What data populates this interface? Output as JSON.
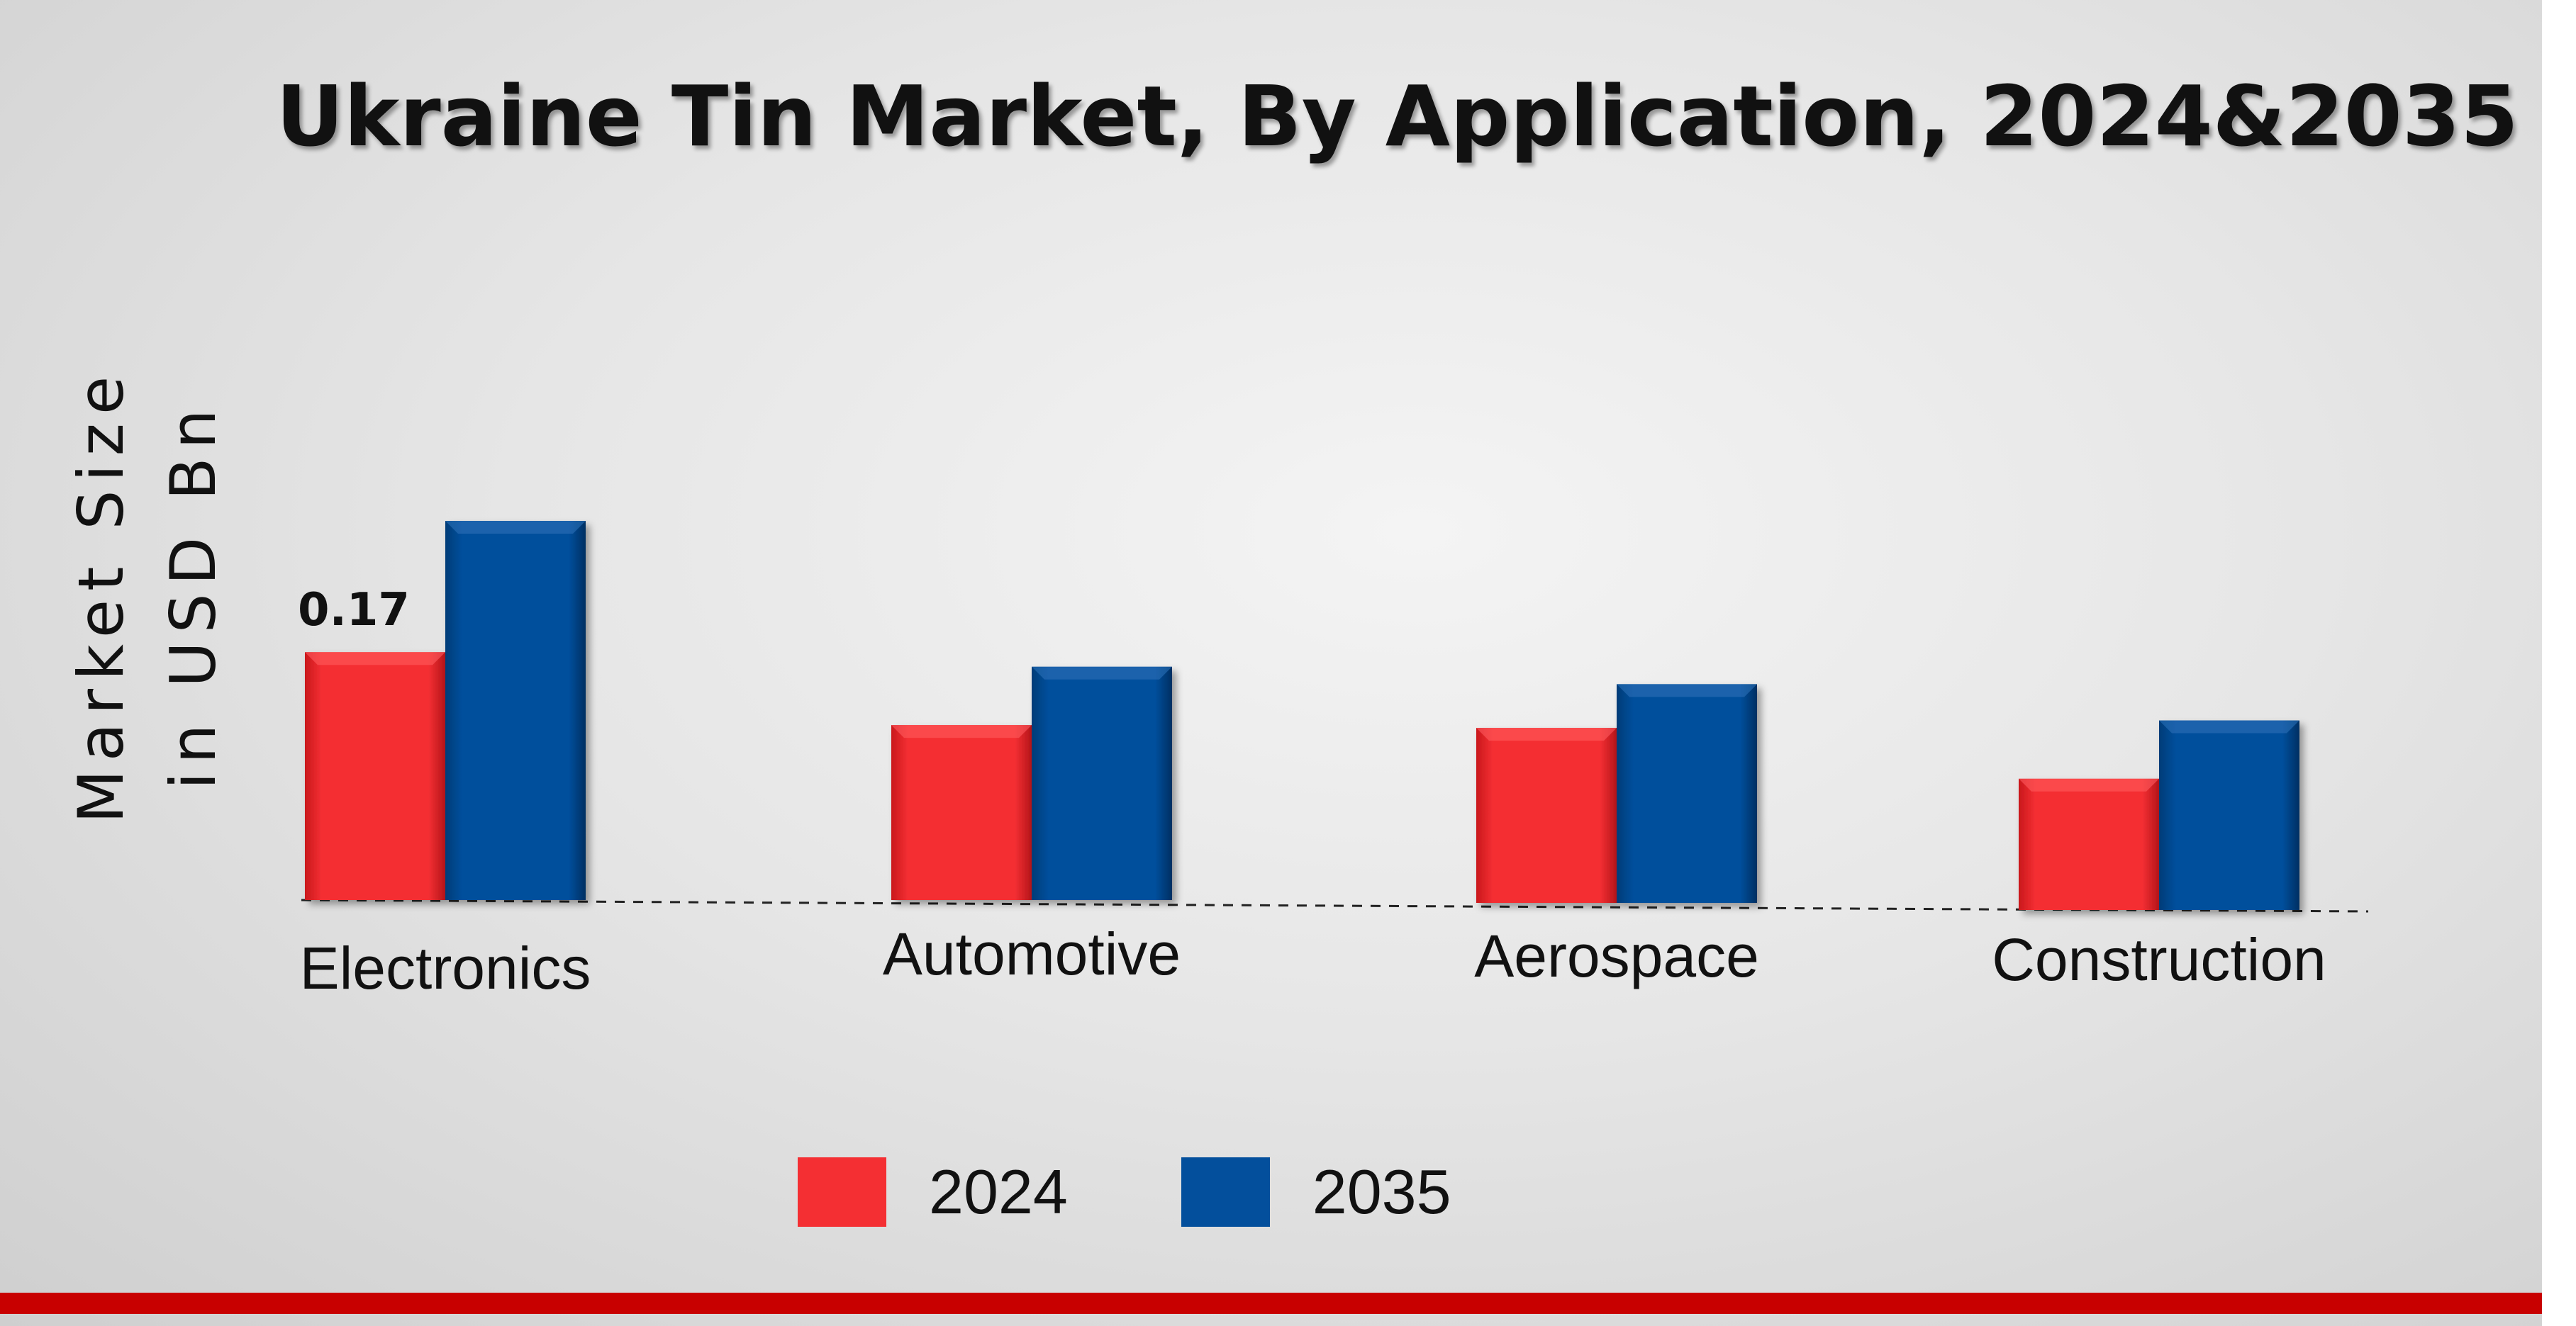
{
  "chart_data": {
    "type": "bar",
    "title": "Ukraine Tin Market, By Application, 2024&2035",
    "ylabel_line1": "Market Size",
    "ylabel_line2": "in USD Bn",
    "categories": [
      "Electronics",
      "Automotive",
      "Aerospace",
      "Construction"
    ],
    "series": [
      {
        "name": "2024",
        "color": "#f42f33",
        "values": [
          0.17,
          0.12,
          0.12,
          0.09
        ]
      },
      {
        "name": "2035",
        "color": "#034f9c",
        "values": [
          0.26,
          0.16,
          0.15,
          0.13
        ]
      }
    ],
    "data_labels": [
      {
        "series": 0,
        "category": 0,
        "text": "0.17"
      }
    ],
    "ylim": [
      0,
      0.3
    ],
    "grid": false,
    "legend_position": "bottom"
  },
  "colors": {
    "accent_bar": "#c80000"
  }
}
